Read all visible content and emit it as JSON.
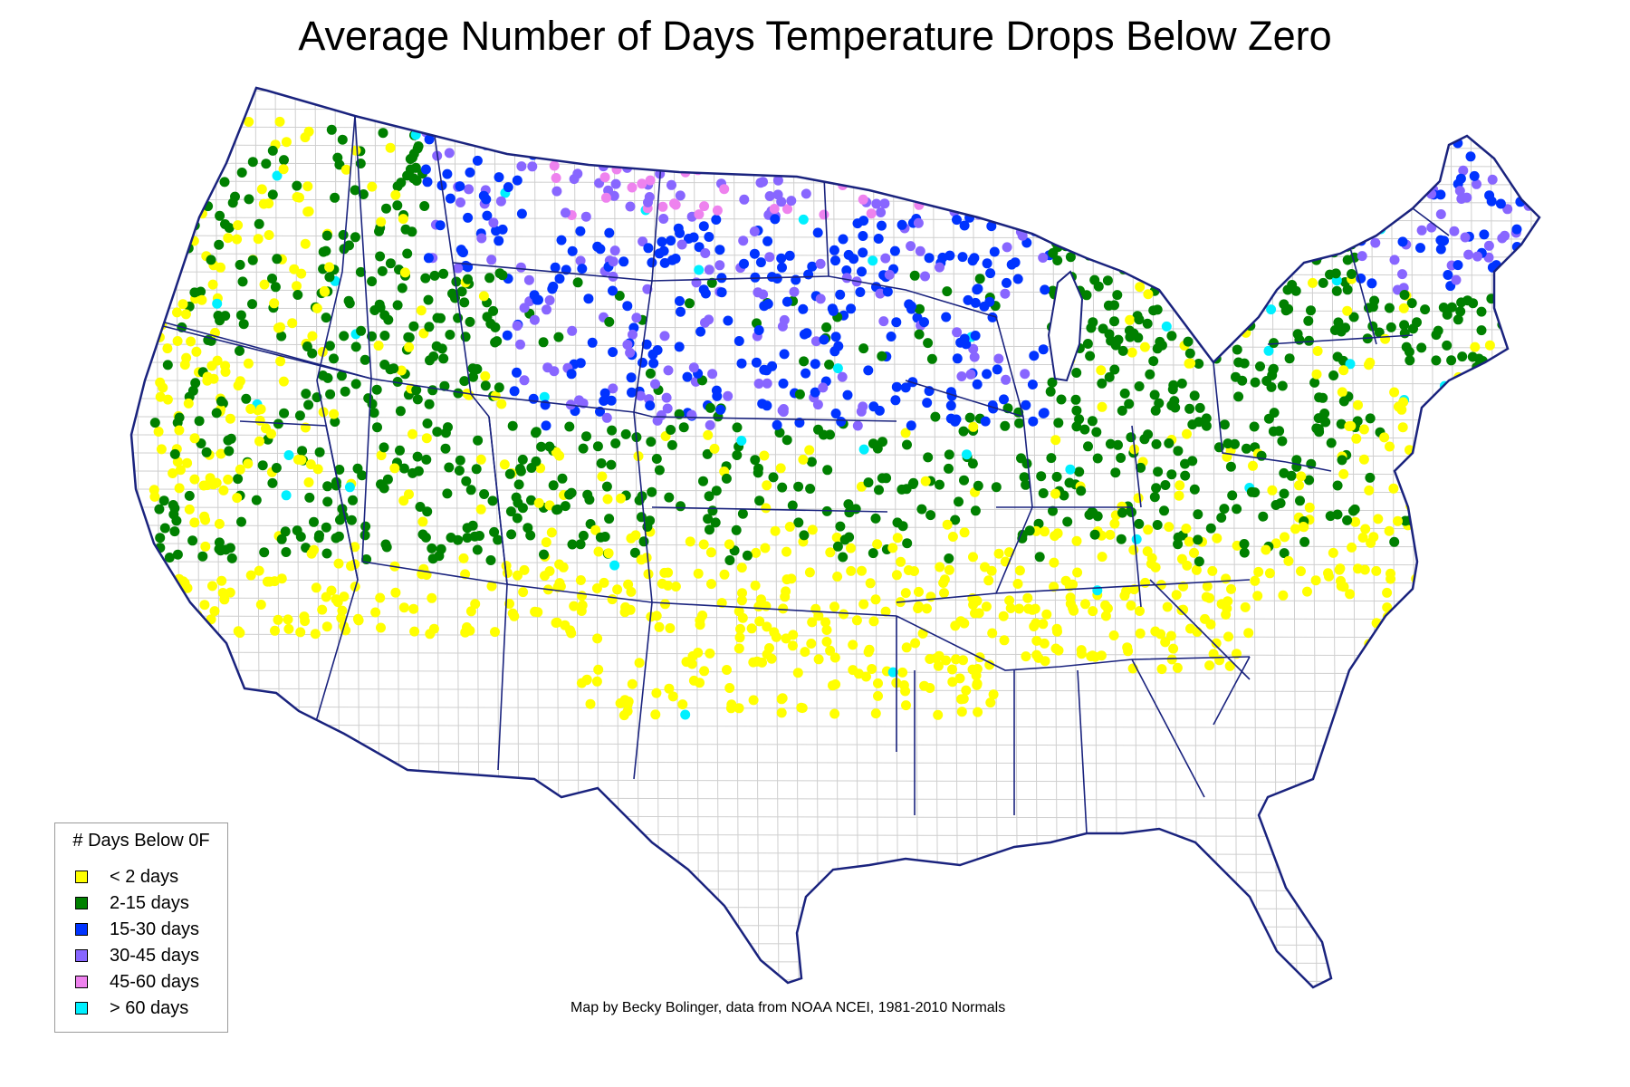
{
  "title": "Average Number of Days Temperature Drops Below Zero",
  "legend": {
    "title": "# Days Below 0F",
    "items": [
      {
        "label": "< 2 days",
        "color": "#ffff00"
      },
      {
        "label": "2-15 days",
        "color": "#008000"
      },
      {
        "label": "15-30 days",
        "color": "#0033ff"
      },
      {
        "label": "30-45 days",
        "color": "#8866ff"
      },
      {
        "label": "45-60 days",
        "color": "#ee82ee"
      },
      {
        "label": "> 60 days",
        "color": "#00f0ff"
      }
    ]
  },
  "credit": "Map by Becky Bolinger, data from NOAA NCEI, 1981-2010 Normals",
  "colors": {
    "state_border": "#1a237e",
    "county_border": "#c8c8c8",
    "land": "#ffffff"
  }
}
